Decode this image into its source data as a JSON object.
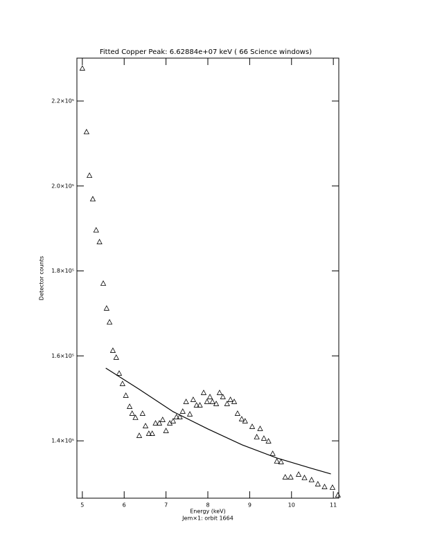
{
  "chart_data": {
    "type": "scatter",
    "title": "Fitted Copper Peak:   6.62884e+07 keV (      66 Science windows)",
    "x_label": "Energy (keV)",
    "subtitle": "Jem×1: orbit 1664",
    "y_label": "Detector counts",
    "xlim": [
      4.87,
      11.13
    ],
    "ylim": [
      126500,
      230100
    ],
    "xticks": [
      5,
      6,
      7,
      8,
      9,
      10,
      11
    ],
    "yticks": [
      {
        "value": 140000,
        "label": "1.4×10⁵"
      },
      {
        "value": 160000,
        "label": "1.6×10⁵"
      },
      {
        "value": 180000,
        "label": "1.8×10⁵"
      },
      {
        "value": 200000,
        "label": "2.0×10⁵"
      },
      {
        "value": 220000,
        "label": "2.2×10⁵"
      }
    ],
    "series": [
      {
        "type": "scatter",
        "color": "#000000",
        "x": [
          5.0,
          5.1,
          5.17,
          5.25,
          5.33,
          5.41,
          5.5,
          5.58,
          5.65,
          5.73,
          5.81,
          5.88,
          5.96,
          6.04,
          6.13,
          6.19,
          6.27,
          6.36,
          6.44,
          6.51,
          6.59,
          6.67,
          6.75,
          6.84,
          6.92,
          7.0,
          7.09,
          7.17,
          7.25,
          7.33,
          7.4,
          7.48,
          7.57,
          7.65,
          7.73,
          7.81,
          7.9,
          7.98,
          8.05,
          8.11,
          8.2,
          8.28,
          8.36,
          8.46,
          8.54,
          8.63,
          8.71,
          8.81,
          8.89,
          9.06,
          9.17,
          9.25,
          9.34,
          9.45,
          9.55,
          9.65,
          9.75,
          9.85,
          9.98,
          10.17,
          10.31,
          10.48,
          10.63,
          10.79,
          10.98,
          11.11
        ],
        "values": [
          227650,
          212670,
          202410,
          196870,
          189540,
          186780,
          177000,
          171140,
          167880,
          161210,
          159580,
          155830,
          153390,
          150620,
          148010,
          146380,
          145410,
          141170,
          146380,
          143450,
          141660,
          141660,
          144100,
          144100,
          144920,
          142310,
          144100,
          144590,
          145570,
          145570,
          146870,
          149150,
          146220,
          149640,
          148340,
          148340,
          151270,
          149150,
          150290,
          149150,
          148660,
          151270,
          150290,
          148660,
          149640,
          149150,
          146380,
          145080,
          144590,
          143290,
          140850,
          142800,
          140520,
          139870,
          136940,
          135150,
          134980,
          131400,
          131400,
          132050,
          131240,
          130750,
          129770,
          129120,
          128960,
          127170
        ]
      },
      {
        "type": "line",
        "color": "#000000",
        "x": [
          5.56,
          6.34,
          7.17,
          8.0,
          8.82,
          9.65,
          10.48,
          10.94
        ],
        "values": [
          157130,
          152250,
          146870,
          142800,
          139050,
          135960,
          133520,
          132210
        ]
      }
    ]
  }
}
